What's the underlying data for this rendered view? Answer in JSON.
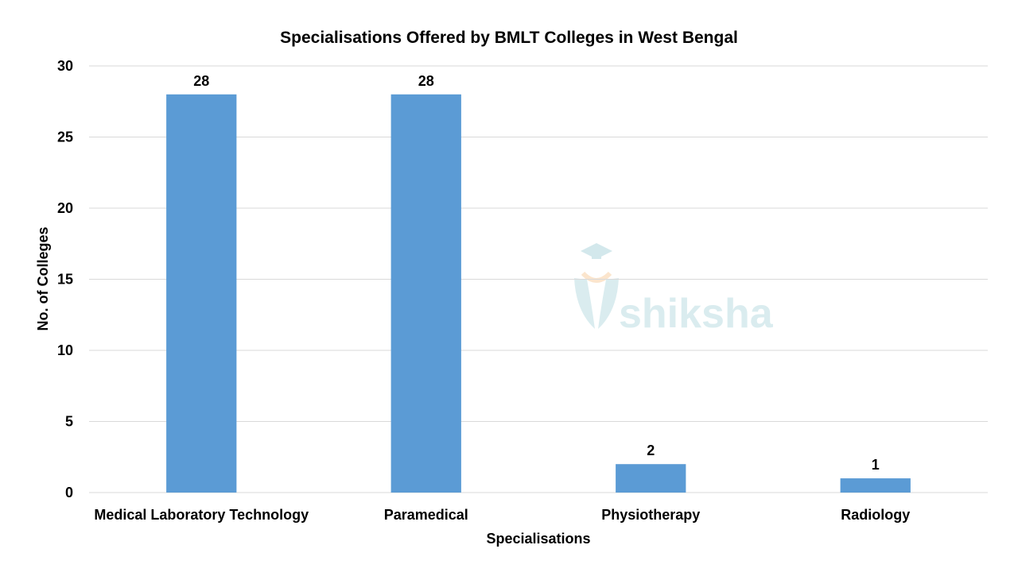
{
  "chart_data": {
    "type": "bar",
    "title": "Specialisations Offered by BMLT Colleges in West Bengal",
    "xlabel": "Specialisations",
    "ylabel": "No. of Colleges",
    "categories": [
      "Medical Laboratory Technology",
      "Paramedical",
      "Physiotherapy",
      "Radiology"
    ],
    "values": [
      28,
      28,
      2,
      1
    ],
    "ylim": [
      0,
      30
    ],
    "yticks": [
      0,
      5,
      10,
      15,
      20,
      25,
      30
    ],
    "grid": true,
    "data_labels": true,
    "bar_color": "#5b9bd5"
  },
  "watermark": {
    "text": "shiksha",
    "color": "#d6ebee"
  }
}
